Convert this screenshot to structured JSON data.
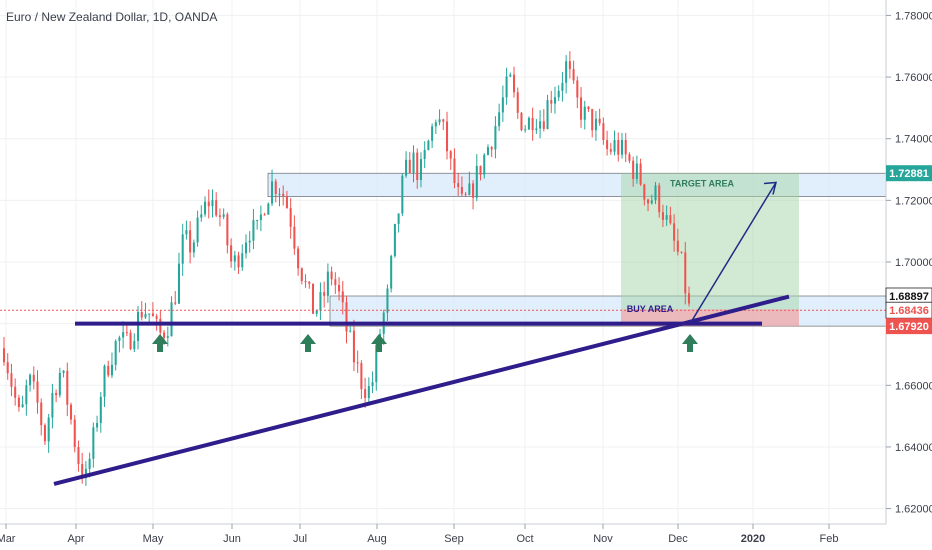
{
  "chart_data": {
    "type": "candlestick",
    "title": "Euro / New Zealand Dollar, 1D, OANDA",
    "instrument": "EURNZD",
    "timeframe": "1D",
    "source": "OANDA",
    "ylim": [
      1.615,
      1.785
    ],
    "y_ticks": [
      "1.78000",
      "1.76000",
      "1.74000",
      "1.72000",
      "1.70000",
      "1.68000",
      "1.66000",
      "1.64000",
      "1.62000"
    ],
    "x_ticks": [
      "Mar",
      "Apr",
      "May",
      "Jun",
      "Jul",
      "Aug",
      "Sep",
      "Oct",
      "Nov",
      "Dec",
      "2020",
      "Feb"
    ],
    "colors": {
      "up": "#26a69a",
      "down": "#ef5350",
      "trend": "#2e1d8a",
      "target": "#4caf50",
      "entry": "#ef5350"
    },
    "price_tags": [
      {
        "label": "1.72881",
        "value": 1.72881,
        "color": "#26a69a"
      },
      {
        "label": "1.68897",
        "value": 1.68897,
        "color": "#ffffff"
      },
      {
        "label": "1.68436",
        "value": 1.68436,
        "color": "#ffffff"
      },
      {
        "label": "1.67920",
        "value": 1.6792,
        "color": "#ef5350"
      }
    ],
    "zones": [
      {
        "name": "resistance",
        "top": 1.72881,
        "bottom": 1.7212
      },
      {
        "name": "support",
        "top": 1.68897,
        "bottom": 1.6792
      }
    ],
    "annotations": [
      {
        "text": "TARGET AREA",
        "value": 1.7255
      },
      {
        "text": "BUY AREA",
        "value": 1.6848
      }
    ],
    "horizontal_support": 1.68,
    "trendline": {
      "from": 1.628,
      "to": 1.6888
    },
    "arrow_up_count": 5,
    "price_path": [
      [
        1.672,
        1.66,
        1.648,
        1.662,
        1.655,
        1.643,
        1.658,
        1.665,
        1.652,
        1.637,
        1.629,
        1.643,
        1.66,
        1.669,
        1.675,
        1.673,
        1.679,
        1.685,
        1.683,
        1.676,
        1.679,
        1.69,
        1.707,
        1.705,
        1.713,
        1.72,
        1.718,
        1.711,
        1.698,
        1.704,
        1.711,
        1.709,
        1.72,
        1.726,
        1.724,
        1.716,
        1.702,
        1.692,
        1.684,
        1.687,
        1.697,
        1.69,
        1.678,
        1.668,
        1.66,
        1.658,
        1.676,
        1.688,
        1.71,
        1.727,
        1.734,
        1.728,
        1.738,
        1.748,
        1.741,
        1.728,
        1.718,
        1.721,
        1.728,
        1.735,
        1.742,
        1.751,
        1.759,
        1.748,
        1.744,
        1.748,
        1.746,
        1.754,
        1.757,
        1.764,
        1.753,
        1.748,
        1.746,
        1.742,
        1.736,
        1.738,
        1.735,
        1.731,
        1.727,
        1.72,
        1.722,
        1.715,
        1.707,
        1.7,
        1.6845
      ]
    ]
  }
}
